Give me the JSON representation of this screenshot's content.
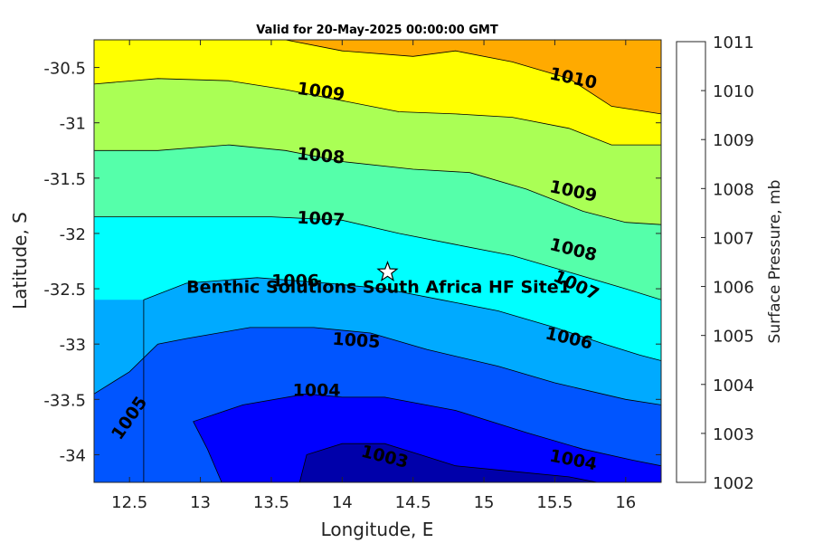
{
  "chart_data": {
    "type": "contour",
    "title": "Valid for 20-May-2025 00:00:00 GMT",
    "xlabel": "Longitude, E",
    "ylabel": "Latitude, S",
    "xlim": [
      12.25,
      16.25
    ],
    "ylim": [
      -34.25,
      -30.25
    ],
    "xticks": [
      12.5,
      13,
      13.5,
      14,
      14.5,
      15,
      15.5,
      16
    ],
    "xtick_labels": [
      "12.5",
      "13",
      "13.5",
      "14",
      "14.5",
      "15",
      "15.5",
      "16"
    ],
    "yticks": [
      -30.5,
      -31,
      -31.5,
      -32,
      -32.5,
      -33,
      -33.5,
      -34
    ],
    "ytick_labels": [
      "-30.5",
      "-31",
      "-31.5",
      "-32",
      "-32.5",
      "-33",
      "-33.5",
      "-34"
    ],
    "levels": [
      1002,
      1003,
      1004,
      1005,
      1006,
      1007,
      1008,
      1009,
      1010,
      1011
    ],
    "level_labels": [
      "1002",
      "1003",
      "1004",
      "1005",
      "1006",
      "1007",
      "1008",
      "1009",
      "1010",
      "1011"
    ],
    "colorbar_label": "Surface Pressure, mb",
    "band_colors": [
      "#0000aa",
      "#0000ff",
      "#0055ff",
      "#00aaff",
      "#00ffff",
      "#55ffaa",
      "#aaff55",
      "#ffff00",
      "#ffaa00",
      "#ff5500"
    ],
    "contours": [
      {
        "level": 1003,
        "points": [
          [
            13.7,
            -34.25
          ],
          [
            13.75,
            -34.0
          ],
          [
            14.0,
            -33.9
          ],
          [
            14.3,
            -33.9
          ],
          [
            14.55,
            -34.0
          ],
          [
            14.8,
            -34.1
          ],
          [
            15.2,
            -34.15
          ],
          [
            15.6,
            -34.2
          ],
          [
            15.8,
            -34.25
          ]
        ]
      },
      {
        "level": 1004,
        "points": [
          [
            13.15,
            -34.25
          ],
          [
            13.05,
            -33.95
          ],
          [
            12.95,
            -33.7
          ],
          [
            13.3,
            -33.55
          ],
          [
            13.75,
            -33.45
          ],
          [
            14.0,
            -33.48
          ],
          [
            14.3,
            -33.48
          ],
          [
            14.8,
            -33.6
          ],
          [
            15.3,
            -33.8
          ],
          [
            15.7,
            -33.95
          ],
          [
            16.05,
            -34.05
          ],
          [
            16.25,
            -34.1
          ]
        ]
      },
      {
        "level": 1005,
        "points": [
          [
            12.25,
            -33.45
          ],
          [
            12.5,
            -33.25
          ],
          [
            12.7,
            -33.0
          ],
          [
            12.9,
            -32.95
          ],
          [
            13.35,
            -32.85
          ],
          [
            13.8,
            -32.85
          ],
          [
            14.2,
            -32.9
          ],
          [
            14.6,
            -33.05
          ],
          [
            15.1,
            -33.2
          ],
          [
            15.5,
            -33.35
          ],
          [
            16.0,
            -33.5
          ],
          [
            16.25,
            -33.55
          ]
        ]
      },
      {
        "level": 1006,
        "points": [
          [
            12.6,
            -34.25
          ],
          [
            12.6,
            -33.8
          ],
          [
            12.6,
            -33.2
          ],
          [
            12.6,
            -32.6
          ],
          [
            12.9,
            -32.45
          ],
          [
            13.4,
            -32.4
          ],
          [
            13.9,
            -32.45
          ],
          [
            14.3,
            -32.5
          ],
          [
            14.7,
            -32.6
          ],
          [
            15.1,
            -32.7
          ],
          [
            15.5,
            -32.85
          ],
          [
            15.85,
            -33.0
          ],
          [
            16.1,
            -33.1
          ],
          [
            16.25,
            -33.15
          ]
        ]
      },
      {
        "level": 1007,
        "points": [
          [
            12.25,
            -31.85
          ],
          [
            12.6,
            -31.85
          ],
          [
            13.0,
            -31.85
          ],
          [
            13.5,
            -31.85
          ],
          [
            14.0,
            -31.88
          ],
          [
            14.4,
            -32.0
          ],
          [
            14.8,
            -32.1
          ],
          [
            15.2,
            -32.2
          ],
          [
            15.6,
            -32.35
          ],
          [
            16.0,
            -32.5
          ],
          [
            16.25,
            -32.6
          ]
        ]
      },
      {
        "level": 1008,
        "points": [
          [
            12.25,
            -31.25
          ],
          [
            12.7,
            -31.25
          ],
          [
            13.2,
            -31.2
          ],
          [
            13.6,
            -31.25
          ],
          [
            14.0,
            -31.35
          ],
          [
            14.5,
            -31.42
          ],
          [
            14.9,
            -31.45
          ],
          [
            15.3,
            -31.6
          ],
          [
            15.7,
            -31.8
          ],
          [
            16.0,
            -31.9
          ],
          [
            16.25,
            -31.92
          ]
        ]
      },
      {
        "level": 1009,
        "points": [
          [
            12.25,
            -30.65
          ],
          [
            12.7,
            -30.6
          ],
          [
            13.2,
            -30.62
          ],
          [
            13.6,
            -30.7
          ],
          [
            14.0,
            -30.8
          ],
          [
            14.4,
            -30.9
          ],
          [
            14.8,
            -30.92
          ],
          [
            15.2,
            -30.95
          ],
          [
            15.6,
            -31.05
          ],
          [
            15.9,
            -31.2
          ],
          [
            16.25,
            -31.2
          ]
        ]
      },
      {
        "level": 1010,
        "points": [
          [
            13.6,
            -30.25
          ],
          [
            14.0,
            -30.35
          ],
          [
            14.5,
            -30.4
          ],
          [
            14.8,
            -30.35
          ],
          [
            15.2,
            -30.45
          ],
          [
            15.6,
            -30.6
          ],
          [
            15.9,
            -30.85
          ],
          [
            16.25,
            -30.92
          ]
        ]
      }
    ],
    "contour_labels": [
      {
        "text": "1009",
        "lon": 13.85,
        "lat": -30.72,
        "angle": 8
      },
      {
        "text": "1010",
        "lon": 15.63,
        "lat": -30.6,
        "angle": 12
      },
      {
        "text": "1008",
        "lon": 13.85,
        "lat": -31.3,
        "angle": 5
      },
      {
        "text": "1009",
        "lon": 15.63,
        "lat": -31.62,
        "angle": 12
      },
      {
        "text": "1007",
        "lon": 13.85,
        "lat": -31.87,
        "angle": 3
      },
      {
        "text": "1008",
        "lon": 15.63,
        "lat": -32.15,
        "angle": 14
      },
      {
        "text": "1006",
        "lon": 13.67,
        "lat": -32.43,
        "angle": 0
      },
      {
        "text": "1007",
        "lon": 15.65,
        "lat": -32.47,
        "angle": 25
      },
      {
        "text": "1005",
        "lon": 14.1,
        "lat": -32.97,
        "angle": 4
      },
      {
        "text": "1006",
        "lon": 15.6,
        "lat": -32.95,
        "angle": 13
      },
      {
        "text": "1005",
        "lon": 12.5,
        "lat": -33.67,
        "angle": -55
      },
      {
        "text": "1004",
        "lon": 13.82,
        "lat": -33.42,
        "angle": 0
      },
      {
        "text": "1003",
        "lon": 14.3,
        "lat": -34.02,
        "angle": 14
      },
      {
        "text": "1004",
        "lon": 15.63,
        "lat": -34.05,
        "angle": 11
      }
    ],
    "site": {
      "name": "Benthic Solutions South Africa HF Site1",
      "lon": 14.32,
      "lat": -32.35
    }
  }
}
